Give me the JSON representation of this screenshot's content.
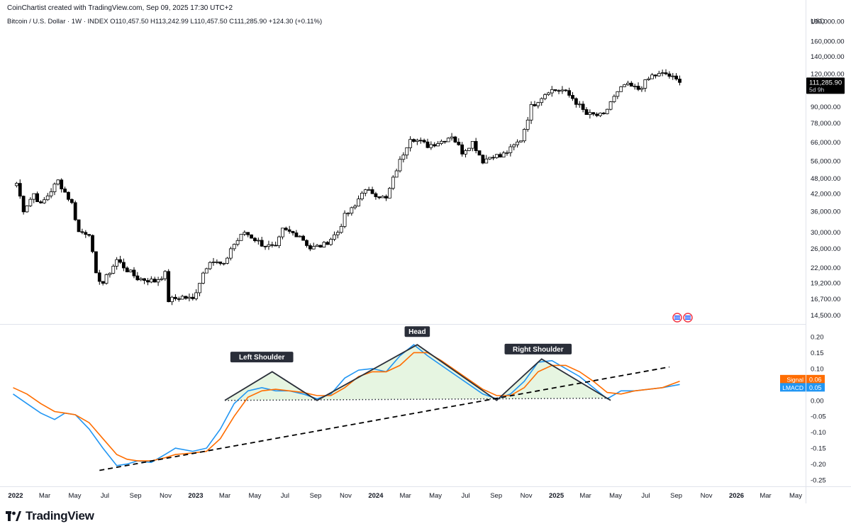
{
  "header": {
    "attribution": "CoinChartist created with TradingView.com, Sep 09, 2025 17:30 UTC+2",
    "symbol_line": "Bitcoin / U.S. Dollar · 1W · INDEX  O110,457.50  H113,242.99  L110,457.50  C111,285.90  +124.30 (+0.11%)"
  },
  "footer": {
    "brand": "TradingView"
  },
  "colors": {
    "up_candle": "#ffffff",
    "down_candle": "#000000",
    "lmacd": "#2196f3",
    "signal": "#ff6d00",
    "pattern_fill": "#e3f4de",
    "price_badge": "#000000"
  },
  "chart_data": [
    {
      "type": "candlestick",
      "scale": "log",
      "currency_label": "USD",
      "y_ticks": [
        "190,000.00",
        "160,000.00",
        "140,000.00",
        "120,000.00",
        "90,000.00",
        "78,000.00",
        "66,000.00",
        "56,000.00",
        "48,000.00",
        "42,000.00",
        "36,000.00",
        "30,000.00",
        "26,000.00",
        "22,000.00",
        "19,200.00",
        "16,700.00",
        "14,500.00"
      ],
      "y_tick_values": [
        190000,
        160000,
        140000,
        120000,
        90000,
        78000,
        66000,
        56000,
        48000,
        42000,
        36000,
        30000,
        26000,
        22000,
        19200,
        16700,
        14500
      ],
      "ylim": [
        14000,
        205000
      ],
      "last_price_label": "111,285.90",
      "countdown_label": "5d 9h",
      "last_price": 111285.9,
      "close_path": [
        [
          "2022-01-03",
          46000
        ],
        [
          "2022-01-17",
          36500
        ],
        [
          "2022-02-07",
          42000
        ],
        [
          "2022-02-21",
          38000
        ],
        [
          "2022-03-28",
          47000
        ],
        [
          "2022-04-25",
          38500
        ],
        [
          "2022-05-09",
          30000
        ],
        [
          "2022-05-30",
          29800
        ],
        [
          "2022-06-13",
          20500
        ],
        [
          "2022-06-27",
          19200
        ],
        [
          "2022-07-25",
          23500
        ],
        [
          "2022-08-15",
          21500
        ],
        [
          "2022-09-05",
          20000
        ],
        [
          "2022-10-10",
          19500
        ],
        [
          "2022-10-31",
          20800
        ],
        [
          "2022-11-07",
          16500
        ],
        [
          "2022-12-05",
          17000
        ],
        [
          "2022-12-26",
          16600
        ],
        [
          "2023-01-16",
          21000
        ],
        [
          "2023-01-30",
          23500
        ],
        [
          "2023-02-27",
          22300
        ],
        [
          "2023-03-13",
          26000
        ],
        [
          "2023-04-10",
          30000
        ],
        [
          "2023-05-15",
          27000
        ],
        [
          "2023-06-12",
          26000
        ],
        [
          "2023-06-26",
          30500
        ],
        [
          "2023-07-31",
          29200
        ],
        [
          "2023-08-21",
          26000
        ],
        [
          "2023-09-18",
          26800
        ],
        [
          "2023-10-16",
          30000
        ],
        [
          "2023-10-30",
          34500
        ],
        [
          "2023-11-20",
          37500
        ],
        [
          "2023-12-04",
          43000
        ],
        [
          "2023-12-25",
          42500
        ],
        [
          "2024-01-22",
          40000
        ],
        [
          "2024-02-12",
          52000
        ],
        [
          "2024-03-11",
          69000
        ],
        [
          "2024-04-15",
          64000
        ],
        [
          "2024-05-13",
          66500
        ],
        [
          "2024-06-03",
          70000
        ],
        [
          "2024-06-24",
          60500
        ],
        [
          "2024-07-15",
          66000
        ],
        [
          "2024-08-05",
          56000
        ],
        [
          "2024-08-26",
          59000
        ],
        [
          "2024-09-09",
          58000
        ],
        [
          "2024-09-30",
          62000
        ],
        [
          "2024-10-21",
          67500
        ],
        [
          "2024-11-11",
          90000
        ],
        [
          "2024-12-16",
          104000
        ],
        [
          "2025-01-13",
          104000
        ],
        [
          "2025-02-03",
          97000
        ],
        [
          "2025-03-03",
          84000
        ],
        [
          "2025-04-07",
          83000
        ],
        [
          "2025-04-21",
          94000
        ],
        [
          "2025-05-19",
          109000
        ],
        [
          "2025-06-16",
          105000
        ],
        [
          "2025-07-14",
          118000
        ],
        [
          "2025-08-11",
          120000
        ],
        [
          "2025-09-08",
          111285.9
        ]
      ]
    },
    {
      "type": "line",
      "ylim": [
        -0.27,
        0.22
      ],
      "y_ticks": [
        "0.20",
        "0.15",
        "0.10",
        "0.05",
        "0.00",
        "-0.05",
        "-0.10",
        "-0.15",
        "-0.20",
        "-0.25"
      ],
      "y_tick_values": [
        0.2,
        0.15,
        0.1,
        0.05,
        0.0,
        -0.05,
        -0.1,
        -0.15,
        -0.2,
        -0.25
      ],
      "x_ticks": [
        {
          "label": "2022",
          "date": "2022-01-01",
          "bold": true
        },
        {
          "label": "Mar",
          "date": "2022-03-01"
        },
        {
          "label": "May",
          "date": "2022-05-01"
        },
        {
          "label": "Jul",
          "date": "2022-07-01"
        },
        {
          "label": "Sep",
          "date": "2022-09-01"
        },
        {
          "label": "Nov",
          "date": "2022-11-01"
        },
        {
          "label": "2023",
          "date": "2023-01-01",
          "bold": true
        },
        {
          "label": "Mar",
          "date": "2023-03-01"
        },
        {
          "label": "May",
          "date": "2023-05-01"
        },
        {
          "label": "Jul",
          "date": "2023-07-01"
        },
        {
          "label": "Sep",
          "date": "2023-09-01"
        },
        {
          "label": "Nov",
          "date": "2023-11-01"
        },
        {
          "label": "2024",
          "date": "2024-01-01",
          "bold": true
        },
        {
          "label": "Mar",
          "date": "2024-03-01"
        },
        {
          "label": "May",
          "date": "2024-05-01"
        },
        {
          "label": "Jul",
          "date": "2024-07-01"
        },
        {
          "label": "Sep",
          "date": "2024-09-01"
        },
        {
          "label": "Nov",
          "date": "2024-11-01"
        },
        {
          "label": "2025",
          "date": "2025-01-01",
          "bold": true
        },
        {
          "label": "Mar",
          "date": "2025-03-01"
        },
        {
          "label": "May",
          "date": "2025-05-01"
        },
        {
          "label": "Jul",
          "date": "2025-07-01"
        },
        {
          "label": "Sep",
          "date": "2025-09-01"
        },
        {
          "label": "Nov",
          "date": "2025-11-01"
        },
        {
          "label": "2026",
          "date": "2026-01-01",
          "bold": true
        },
        {
          "label": "Mar",
          "date": "2026-03-01"
        },
        {
          "label": "May",
          "date": "2026-05-01"
        }
      ],
      "series": [
        {
          "name": "LMACD",
          "last_label": "0.05",
          "points": [
            [
              "2021-12-27",
              0.02
            ],
            [
              "2022-01-24",
              -0.01
            ],
            [
              "2022-02-21",
              -0.04
            ],
            [
              "2022-03-21",
              -0.06
            ],
            [
              "2022-04-11",
              -0.04
            ],
            [
              "2022-05-02",
              -0.045
            ],
            [
              "2022-05-30",
              -0.09
            ],
            [
              "2022-06-27",
              -0.15
            ],
            [
              "2022-07-25",
              -0.205
            ],
            [
              "2022-08-15",
              -0.2
            ],
            [
              "2022-09-05",
              -0.19
            ],
            [
              "2022-10-03",
              -0.195
            ],
            [
              "2022-10-31",
              -0.17
            ],
            [
              "2022-11-21",
              -0.15
            ],
            [
              "2022-12-26",
              -0.16
            ],
            [
              "2023-01-23",
              -0.15
            ],
            [
              "2023-02-20",
              -0.09
            ],
            [
              "2023-03-20",
              -0.01
            ],
            [
              "2023-04-17",
              0.03
            ],
            [
              "2023-05-15",
              0.04
            ],
            [
              "2023-06-12",
              0.03
            ],
            [
              "2023-07-10",
              0.03
            ],
            [
              "2023-08-07",
              0.02
            ],
            [
              "2023-09-04",
              0.005
            ],
            [
              "2023-10-02",
              0.02
            ],
            [
              "2023-10-30",
              0.07
            ],
            [
              "2023-11-27",
              0.095
            ],
            [
              "2023-12-25",
              0.1
            ],
            [
              "2024-01-22",
              0.09
            ],
            [
              "2024-02-19",
              0.14
            ],
            [
              "2024-03-18",
              0.175
            ],
            [
              "2024-04-15",
              0.14
            ],
            [
              "2024-05-13",
              0.11
            ],
            [
              "2024-06-10",
              0.08
            ],
            [
              "2024-07-08",
              0.05
            ],
            [
              "2024-08-05",
              0.02
            ],
            [
              "2024-09-02",
              0.005
            ],
            [
              "2024-09-30",
              0.02
            ],
            [
              "2024-10-28",
              0.06
            ],
            [
              "2024-11-25",
              0.12
            ],
            [
              "2024-12-23",
              0.125
            ],
            [
              "2025-01-20",
              0.1
            ],
            [
              "2025-02-17",
              0.075
            ],
            [
              "2025-03-17",
              0.04
            ],
            [
              "2025-04-14",
              0.005
            ],
            [
              "2025-05-12",
              0.03
            ],
            [
              "2025-06-09",
              0.03
            ],
            [
              "2025-07-07",
              0.035
            ],
            [
              "2025-08-04",
              0.04
            ],
            [
              "2025-09-08",
              0.05
            ]
          ]
        },
        {
          "name": "Signal",
          "last_label": "0.06",
          "points": [
            [
              "2021-12-27",
              0.04
            ],
            [
              "2022-01-24",
              0.02
            ],
            [
              "2022-02-21",
              -0.01
            ],
            [
              "2022-03-21",
              -0.035
            ],
            [
              "2022-04-11",
              -0.04
            ],
            [
              "2022-05-02",
              -0.045
            ],
            [
              "2022-05-30",
              -0.07
            ],
            [
              "2022-06-27",
              -0.12
            ],
            [
              "2022-07-25",
              -0.17
            ],
            [
              "2022-08-15",
              -0.185
            ],
            [
              "2022-09-05",
              -0.19
            ],
            [
              "2022-10-03",
              -0.19
            ],
            [
              "2022-10-31",
              -0.18
            ],
            [
              "2022-11-21",
              -0.17
            ],
            [
              "2022-12-26",
              -0.165
            ],
            [
              "2023-01-23",
              -0.16
            ],
            [
              "2023-02-20",
              -0.12
            ],
            [
              "2023-03-20",
              -0.05
            ],
            [
              "2023-04-17",
              0.01
            ],
            [
              "2023-05-15",
              0.03
            ],
            [
              "2023-06-12",
              0.035
            ],
            [
              "2023-07-10",
              0.03
            ],
            [
              "2023-08-07",
              0.025
            ],
            [
              "2023-09-04",
              0.015
            ],
            [
              "2023-10-02",
              0.015
            ],
            [
              "2023-10-30",
              0.04
            ],
            [
              "2023-11-27",
              0.075
            ],
            [
              "2023-12-25",
              0.09
            ],
            [
              "2024-01-22",
              0.09
            ],
            [
              "2024-02-19",
              0.11
            ],
            [
              "2024-03-18",
              0.15
            ],
            [
              "2024-04-15",
              0.15
            ],
            [
              "2024-05-13",
              0.125
            ],
            [
              "2024-06-10",
              0.095
            ],
            [
              "2024-07-08",
              0.065
            ],
            [
              "2024-08-05",
              0.035
            ],
            [
              "2024-09-02",
              0.015
            ],
            [
              "2024-09-30",
              0.015
            ],
            [
              "2024-10-28",
              0.04
            ],
            [
              "2024-11-25",
              0.09
            ],
            [
              "2024-12-23",
              0.11
            ],
            [
              "2025-01-20",
              0.11
            ],
            [
              "2025-02-17",
              0.09
            ],
            [
              "2025-03-17",
              0.06
            ],
            [
              "2025-04-14",
              0.025
            ],
            [
              "2025-05-12",
              0.02
            ],
            [
              "2025-06-09",
              0.03
            ],
            [
              "2025-07-07",
              0.035
            ],
            [
              "2025-08-04",
              0.04
            ],
            [
              "2025-09-08",
              0.06
            ]
          ]
        }
      ],
      "annotations": {
        "labels": [
          {
            "text": "Left Shoulder",
            "date": "2023-05-15",
            "value": 0.095
          },
          {
            "text": "Head",
            "date": "2024-03-25",
            "value": 0.175
          },
          {
            "text": "Right Shoulder",
            "date": "2024-11-25",
            "value": 0.12
          }
        ],
        "pattern_outline": [
          [
            "2023-03-01",
            0.0
          ],
          [
            "2023-06-05",
            0.09
          ],
          [
            "2023-09-04",
            0.0
          ],
          [
            "2024-03-25",
            0.175
          ],
          [
            "2024-09-02",
            0.0
          ],
          [
            "2024-12-02",
            0.13
          ],
          [
            "2025-04-21",
            0.0
          ]
        ],
        "neckline": [
          [
            "2023-03-01",
            0.0
          ],
          [
            "2025-04-21",
            0.007
          ]
        ],
        "trendline": [
          [
            "2022-06-20",
            -0.22
          ],
          [
            "2025-08-18",
            0.105
          ]
        ]
      }
    }
  ]
}
